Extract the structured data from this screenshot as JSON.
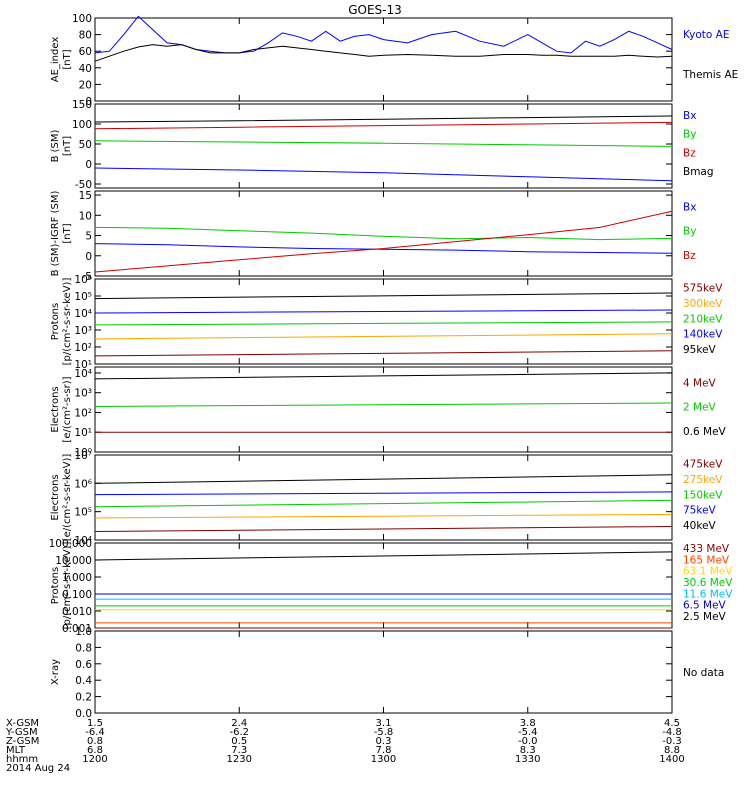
{
  "title": "GOES-13",
  "chart_data": [
    {
      "type": "line",
      "ylabel": [
        "AE_index",
        "[nT]"
      ],
      "ylim": [
        0,
        100
      ],
      "yticks": [
        "0",
        "20",
        "40",
        "60",
        "80",
        "100"
      ],
      "series": [
        {
          "name": "Kyoto AE",
          "color": "#0000ff",
          "x": [
            0,
            6,
            12,
            18,
            24,
            30,
            36,
            42,
            48,
            54,
            60,
            66,
            72,
            78,
            84,
            90,
            96,
            102,
            108,
            114,
            120,
            130,
            140,
            150,
            160,
            170,
            180,
            186,
            192,
            198,
            204,
            210,
            216,
            222,
            228,
            234,
            240
          ],
          "y": [
            58,
            60,
            80,
            102,
            86,
            70,
            68,
            62,
            60,
            58,
            58,
            60,
            70,
            82,
            78,
            72,
            84,
            72,
            78,
            80,
            74,
            70,
            80,
            84,
            72,
            66,
            80,
            70,
            60,
            58,
            72,
            66,
            74,
            84,
            78,
            70,
            62
          ]
        },
        {
          "name": "Themis AE",
          "color": "#000000",
          "x": [
            0,
            6,
            12,
            18,
            24,
            30,
            36,
            42,
            48,
            54,
            60,
            66,
            72,
            78,
            84,
            90,
            96,
            102,
            108,
            114,
            120,
            130,
            140,
            150,
            160,
            170,
            180,
            186,
            192,
            198,
            204,
            210,
            216,
            222,
            228,
            234,
            240
          ],
          "y": [
            48,
            54,
            60,
            65,
            68,
            66,
            68,
            62,
            58,
            58,
            58,
            62,
            64,
            66,
            64,
            62,
            60,
            58,
            56,
            54,
            55,
            56,
            55,
            54,
            54,
            56,
            56,
            55,
            55,
            54,
            54,
            54,
            54,
            55,
            54,
            53,
            54
          ]
        }
      ]
    },
    {
      "type": "line",
      "ylabel": [
        "B (SM)",
        "[nT]"
      ],
      "ylim": [
        -60,
        150
      ],
      "yticks": [
        "-50",
        "0",
        "50",
        "100",
        "150"
      ],
      "series": [
        {
          "name": "Bx",
          "color": "#0000ff",
          "x": [
            0,
            60,
            120,
            180,
            240
          ],
          "y": [
            -10,
            -15,
            -22,
            -32,
            -42
          ]
        },
        {
          "name": "By",
          "color": "#00cc00",
          "x": [
            0,
            60,
            120,
            180,
            240
          ],
          "y": [
            58,
            55,
            52,
            48,
            44
          ]
        },
        {
          "name": "Bz",
          "color": "#cc0000",
          "x": [
            0,
            60,
            120,
            180,
            240
          ],
          "y": [
            88,
            92,
            96,
            100,
            104
          ]
        },
        {
          "name": "Bmag",
          "color": "#000000",
          "x": [
            0,
            60,
            120,
            180,
            240
          ],
          "y": [
            105,
            108,
            112,
            116,
            120
          ]
        }
      ]
    },
    {
      "type": "line",
      "ylabel": [
        "B (SM)-IGRF (SM)",
        "[nT]"
      ],
      "ylim": [
        -5,
        16
      ],
      "yticks": [
        "-5",
        "0",
        "5",
        "10",
        "15"
      ],
      "series": [
        {
          "name": "Bx",
          "color": "#0000ff",
          "x": [
            0,
            30,
            60,
            90,
            120,
            150,
            180,
            210,
            240
          ],
          "y": [
            3,
            2.7,
            2.2,
            1.8,
            1.6,
            1.4,
            1.0,
            0.8,
            0.6
          ]
        },
        {
          "name": "By",
          "color": "#00cc00",
          "x": [
            0,
            30,
            60,
            90,
            120,
            150,
            180,
            210,
            240
          ],
          "y": [
            7,
            6.8,
            6.2,
            5.6,
            4.8,
            4.2,
            4.5,
            4.0,
            4.3
          ]
        },
        {
          "name": "Bz",
          "color": "#cc0000",
          "x": [
            0,
            30,
            60,
            90,
            120,
            150,
            180,
            210,
            240
          ],
          "y": [
            -4,
            -2.5,
            -1,
            0.5,
            1.8,
            3.5,
            5.2,
            7,
            11
          ]
        }
      ]
    },
    {
      "type": "line",
      "ylog": true,
      "ylabel": [
        "Protons",
        "[p/(cm²-s-sr-keV)]"
      ],
      "ylim": [
        10,
        1000000
      ],
      "yticks": [
        "10¹",
        "10²",
        "10³",
        "10⁴",
        "10⁵",
        "10⁶"
      ],
      "series": [
        {
          "name": "575keV",
          "color": "#800000",
          "x": [
            0,
            240
          ],
          "y": [
            30,
            60
          ]
        },
        {
          "name": "300keV",
          "color": "#ffa500",
          "x": [
            0,
            240
          ],
          "y": [
            300,
            600
          ]
        },
        {
          "name": "210keV",
          "color": "#00cc00",
          "x": [
            0,
            240
          ],
          "y": [
            2000,
            3000
          ]
        },
        {
          "name": "140keV",
          "color": "#0000ff",
          "x": [
            0,
            240
          ],
          "y": [
            10000,
            15000
          ]
        },
        {
          "name": "95keV",
          "color": "#000000",
          "x": [
            0,
            240
          ],
          "y": [
            70000,
            150000
          ]
        }
      ]
    },
    {
      "type": "line",
      "ylog": true,
      "ylabel": [
        "Electrons",
        "[e/(cm²-s-sr)]"
      ],
      "ylim": [
        1,
        20000
      ],
      "yticks": [
        "10⁰",
        "10¹",
        "10²",
        "10³",
        "10⁴"
      ],
      "series": [
        {
          "name": "4 MeV",
          "color": "#800000",
          "x": [
            0,
            240
          ],
          "y": [
            10,
            10
          ]
        },
        {
          "name": "2 MeV",
          "color": "#00cc00",
          "x": [
            0,
            240
          ],
          "y": [
            200,
            300
          ]
        },
        {
          "name": "0.6 MeV",
          "color": "#000000",
          "x": [
            0,
            240
          ],
          "y": [
            5000,
            10000
          ]
        }
      ]
    },
    {
      "type": "line",
      "ylog": true,
      "ylabel": [
        "Electrons",
        "[e/(cm²-s-sr-keV)]"
      ],
      "ylim": [
        10000,
        10000000
      ],
      "yticks": [
        "10⁴",
        "10⁵",
        "10⁶",
        "10⁷"
      ],
      "series": [
        {
          "name": "475keV",
          "color": "#800000",
          "x": [
            0,
            240
          ],
          "y": [
            20000,
            30000
          ]
        },
        {
          "name": "275keV",
          "color": "#ffa500",
          "x": [
            0,
            240
          ],
          "y": [
            60000,
            80000
          ]
        },
        {
          "name": "150keV",
          "color": "#00cc00",
          "x": [
            0,
            240
          ],
          "y": [
            150000,
            250000
          ]
        },
        {
          "name": "75keV",
          "color": "#0000ff",
          "x": [
            0,
            240
          ],
          "y": [
            400000,
            500000
          ]
        },
        {
          "name": "40keV",
          "color": "#000000",
          "x": [
            0,
            240
          ],
          "y": [
            1000000,
            2000000
          ]
        }
      ]
    },
    {
      "type": "line",
      "ylog": true,
      "ylabel": [
        "Protons",
        "[p/(cm²-s-sr-keV)]"
      ],
      "ylim": [
        0.001,
        100
      ],
      "yticks": [
        "0.001",
        "0.010",
        "0.100",
        "1.000",
        "10.000",
        "100.000"
      ],
      "series": [
        {
          "name": "433 MeV",
          "color": "#800000",
          "x": [
            0,
            240
          ],
          "y": [
            0.001,
            0.001
          ]
        },
        {
          "name": "165 MeV",
          "color": "#ff4500",
          "x": [
            0,
            240
          ],
          "y": [
            0.002,
            0.002
          ]
        },
        {
          "name": "63.1 MeV",
          "color": "#ffd700",
          "x": [
            0,
            240
          ],
          "y": [
            0.012,
            0.012
          ]
        },
        {
          "name": "30.6 MeV",
          "color": "#00cc00",
          "x": [
            0,
            240
          ],
          "y": [
            0.02,
            0.02
          ]
        },
        {
          "name": "11.6 MeV",
          "color": "#00bfff",
          "x": [
            0,
            240
          ],
          "y": [
            0.05,
            0.05
          ]
        },
        {
          "name": "6.5 MeV",
          "color": "#0000cd",
          "x": [
            0,
            240
          ],
          "y": [
            0.1,
            0.1
          ]
        },
        {
          "name": "2.5 MeV",
          "color": "#000000",
          "x": [
            0,
            240
          ],
          "y": [
            10,
            30
          ]
        }
      ]
    },
    {
      "type": "line",
      "ylabel": [
        "X-ray",
        ""
      ],
      "ylim": [
        0,
        1
      ],
      "yticks": [
        "0.0",
        "0.2",
        "0.4",
        "0.6",
        "0.8",
        "1.0"
      ],
      "series": [],
      "note": "No data"
    }
  ],
  "orbit_table": {
    "rows": [
      {
        "label": "X-GSM",
        "values": [
          "1.5",
          "2.4",
          "3.1",
          "3.8",
          "4.5"
        ]
      },
      {
        "label": "Y-GSM",
        "values": [
          "-6.4",
          "-6.2",
          "-5.8",
          "-5.4",
          "-4.8"
        ]
      },
      {
        "label": "Z-GSM",
        "values": [
          "0.8",
          "0.5",
          "0.3",
          "-0.0",
          "-0.3"
        ]
      },
      {
        "label": "MLT",
        "values": [
          "6.8",
          "7.3",
          "7.8",
          "8.3",
          "8.8"
        ]
      },
      {
        "label": "hhmm",
        "values": [
          "1200",
          "1230",
          "1300",
          "1330",
          "1400"
        ]
      }
    ],
    "date": "2014 Aug 24"
  }
}
